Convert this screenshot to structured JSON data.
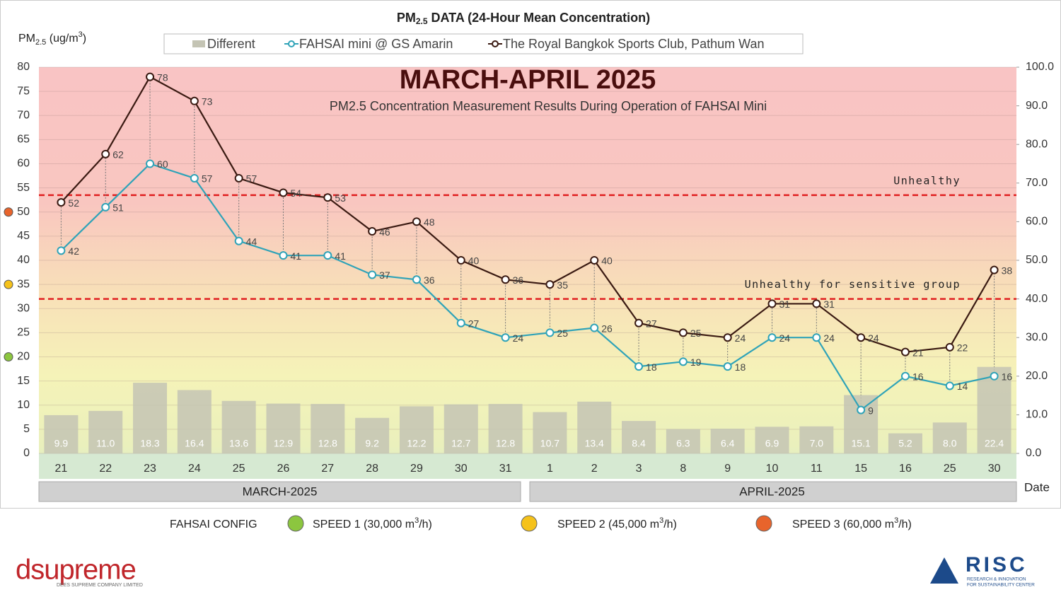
{
  "chart_data": {
    "type": "combo",
    "title_prefix": "PM",
    "title_sub": "2.5",
    "title_rest": " DATA (24-Hour Mean Concentration)",
    "y_label_prefix": "PM",
    "y_label_sub": "2.5",
    "y_label_unit": " (ug/m",
    "y_label_sup": "3",
    "y_label_end": ")",
    "x_label": "Date",
    "headline": "MARCH-APRIL 2025",
    "subtitle": "PM2.5 Concentration Measurement Results During Operation of FAHSAI Mini",
    "categories": [
      "21",
      "22",
      "23",
      "24",
      "25",
      "26",
      "27",
      "28",
      "29",
      "30",
      "31",
      "1",
      "2",
      "3",
      "8",
      "9",
      "10",
      "11",
      "15",
      "16",
      "25",
      "30"
    ],
    "groups": [
      {
        "label": "MARCH-2025",
        "count": 11
      },
      {
        "label": "APRIL-2025",
        "count": 11
      }
    ],
    "series": [
      {
        "name": "Different",
        "type": "bar",
        "axis": "y2",
        "color": "#c4c4b4",
        "values": [
          9.9,
          11.0,
          18.3,
          16.4,
          13.6,
          12.9,
          12.8,
          9.2,
          12.2,
          12.7,
          12.8,
          10.7,
          13.4,
          8.4,
          6.3,
          6.4,
          6.9,
          7.0,
          15.1,
          5.2,
          8.0,
          22.4
        ],
        "value_labels": [
          "9.9",
          "11.0",
          "18.3",
          "16.4",
          "13.6",
          "12.9",
          "12.8",
          "9.2",
          "12.2",
          "12.7",
          "12.8",
          "10.7",
          "13.4",
          "8.4",
          "6.3",
          "6.4",
          "6.9",
          "7.0",
          "15.1",
          "5.2",
          "8.0",
          "22.4"
        ]
      },
      {
        "name": "FAHSAI mini @ GS Amarin",
        "type": "line",
        "color": "#2fa3b8",
        "values": [
          42,
          51,
          60,
          57,
          44,
          41,
          41,
          37,
          36,
          27,
          24,
          25,
          26,
          18,
          19,
          18,
          24,
          24,
          9,
          16,
          14,
          16
        ]
      },
      {
        "name": "The Royal Bangkok Sports Club, Pathum Wan",
        "type": "line",
        "color": "#3a1a12",
        "values": [
          52,
          62,
          78,
          73,
          57,
          54,
          53,
          46,
          48,
          40,
          36,
          35,
          40,
          27,
          25,
          24,
          31,
          31,
          24,
          21,
          22,
          38
        ]
      }
    ],
    "ylim": [
      0,
      80
    ],
    "yticks": [
      0,
      5,
      10,
      15,
      20,
      25,
      30,
      35,
      40,
      45,
      50,
      55,
      60,
      65,
      70,
      75,
      80
    ],
    "y2lim": [
      0,
      100
    ],
    "y2ticks": [
      {
        "value": 0,
        "label": "0.0"
      },
      {
        "value": 10,
        "label": "10.0"
      },
      {
        "value": 20,
        "label": "20.0"
      },
      {
        "value": 30,
        "label": "30.0"
      },
      {
        "value": 40,
        "label": "40.0"
      },
      {
        "value": 50,
        "label": "50.0"
      },
      {
        "value": 60,
        "label": "60.0"
      },
      {
        "value": 70,
        "label": "70.0"
      },
      {
        "value": 80,
        "label": "80.0"
      },
      {
        "value": 90,
        "label": "90.0"
      },
      {
        "value": 100,
        "label": "100.0"
      }
    ],
    "grid": true,
    "thresholds": [
      {
        "label": "Unhealthy",
        "value": 53.5,
        "color": "#e02020"
      },
      {
        "label": "Unhealthy for sensitive group",
        "value": 32,
        "color": "#e02020"
      }
    ],
    "config": {
      "label": "FAHSAI CONFIG",
      "speeds": [
        {
          "name": "SPEED 1 (30,000 m",
          "sup": "3",
          "suffix": "/h)",
          "color": "#8cc63f",
          "level": 20
        },
        {
          "name": "SPEED 2 (45,000 m",
          "sup": "3",
          "suffix": "/h)",
          "color": "#f5c21b",
          "level": 35
        },
        {
          "name": "SPEED 3 (60,000 m",
          "sup": "3",
          "suffix": "/h)",
          "color": "#e8642c",
          "level": 50
        }
      ]
    }
  },
  "logos": {
    "left": "dsupreme",
    "left_sub": "DEES SUPREME COMPANY LIMITED",
    "right": "RISC",
    "right_sub1": "RESEARCH & INNOVATION",
    "right_sub2": "FOR SUSTAINABILITY CENTER"
  }
}
